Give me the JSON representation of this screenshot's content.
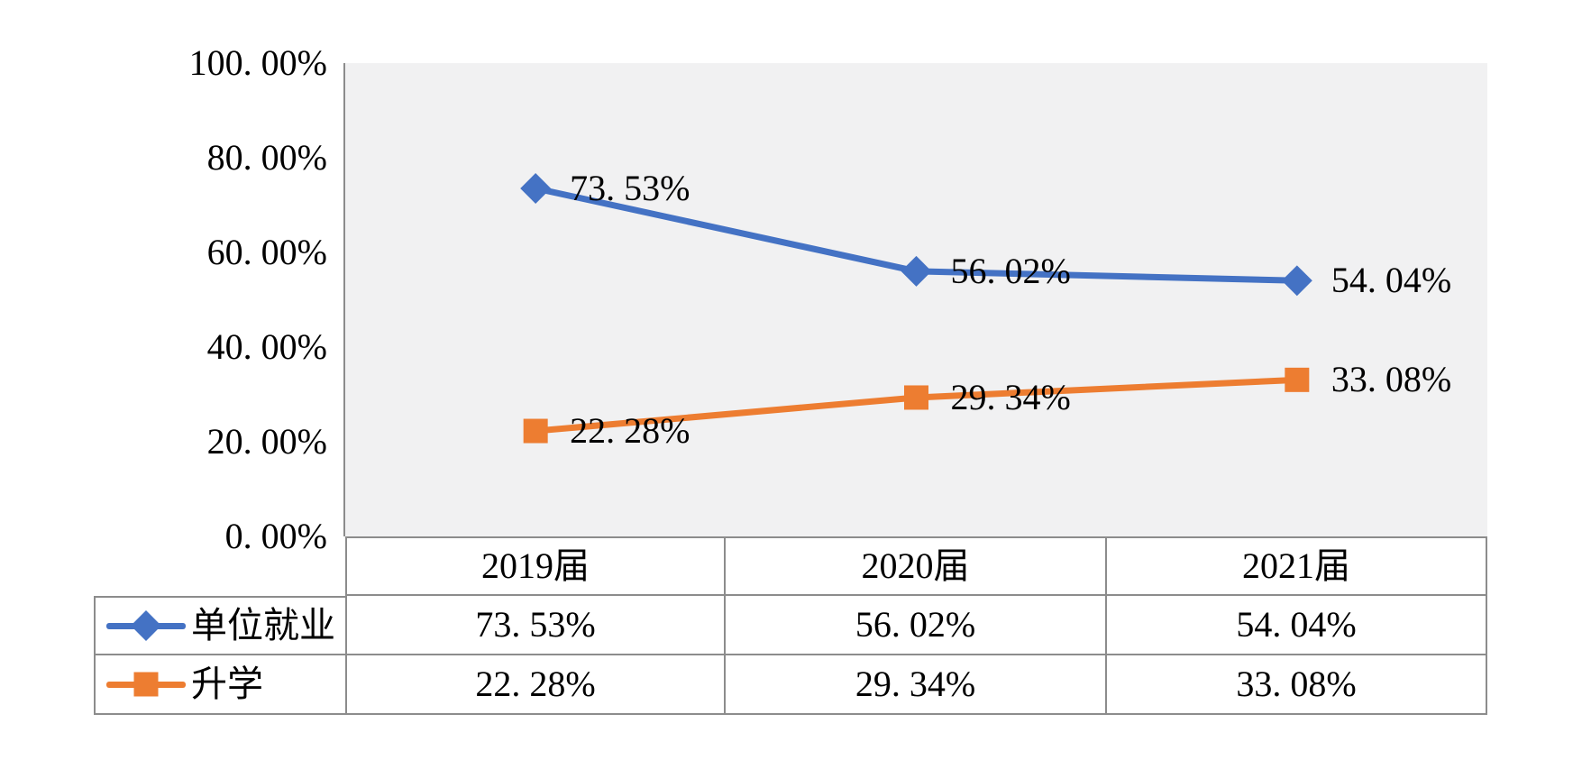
{
  "chart_data": {
    "type": "line",
    "title": "",
    "xlabel": "",
    "ylabel": "",
    "categories": [
      "2019届",
      "2020届",
      "2021届"
    ],
    "series": [
      {
        "name": "单位就业",
        "values": [
          73.53,
          56.02,
          54.04
        ],
        "labels": [
          "73. 53%",
          "56. 02%",
          "54. 04%"
        ],
        "color": "#4472C4",
        "marker": "diamond"
      },
      {
        "name": "升学",
        "values": [
          22.28,
          29.34,
          33.08
        ],
        "labels": [
          "22. 28%",
          "29. 34%",
          "33. 08%"
        ],
        "color": "#ED7D31",
        "marker": "square"
      }
    ],
    "ylim": [
      0,
      100
    ],
    "yticks": [
      {
        "value": 100,
        "label": "100. 00%"
      },
      {
        "value": 80,
        "label": "80. 00%"
      },
      {
        "value": 60,
        "label": "60. 00%"
      },
      {
        "value": 40,
        "label": "40. 00%"
      },
      {
        "value": 20,
        "label": "20. 00%"
      },
      {
        "value": 0,
        "label": "0. 00%"
      }
    ],
    "grid": false,
    "legend_position": "data-table-left",
    "plot_bg_color": "#F1F1F2",
    "axis_line_color": "#8C8C8C"
  },
  "table": {
    "header": [
      "2019届",
      "2020届",
      "2021届"
    ],
    "rows": [
      {
        "legend": "单位就业",
        "values": [
          "73. 53%",
          "56. 02%",
          "54. 04%"
        ]
      },
      {
        "legend": "升学",
        "values": [
          "22. 28%",
          "29. 34%",
          "33. 08%"
        ]
      }
    ]
  }
}
